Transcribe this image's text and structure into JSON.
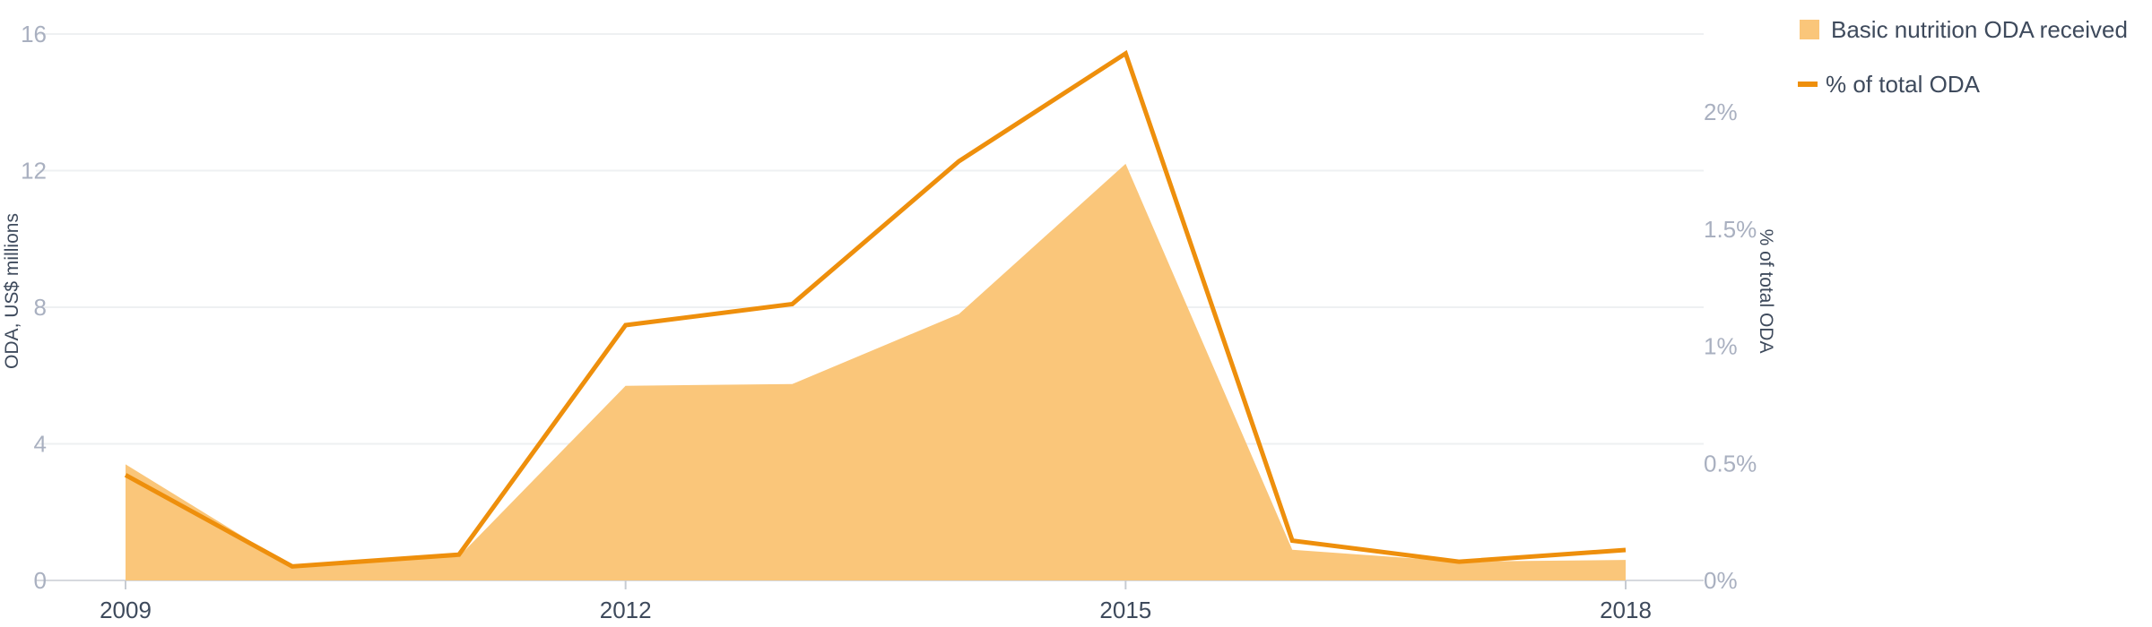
{
  "chart_data": {
    "type": "area",
    "x": [
      2009,
      2010,
      2011,
      2012,
      2013,
      2014,
      2015,
      2016,
      2017,
      2018
    ],
    "x_tick_labels": [
      "2009",
      "2012",
      "2015",
      "2018"
    ],
    "series": [
      {
        "name": "Basic nutrition ODA received",
        "type": "area",
        "axis": "left",
        "color": "#fac67a",
        "values": [
          3.4,
          0.4,
          0.7,
          5.7,
          5.75,
          7.8,
          12.2,
          0.9,
          0.55,
          0.6
        ]
      },
      {
        "name": "% of total ODA",
        "type": "line",
        "axis": "right",
        "color": "#ee8f0c",
        "values": [
          0.45,
          0.06,
          0.11,
          1.09,
          1.18,
          1.79,
          2.25,
          0.17,
          0.08,
          0.13
        ]
      }
    ],
    "y_left": {
      "label": "ODA, US$ millions",
      "range": [
        0,
        16
      ],
      "ticks": [
        0,
        4,
        8,
        12,
        16
      ],
      "tick_labels": [
        "0",
        "4",
        "8",
        "12",
        "16"
      ]
    },
    "y_right": {
      "label": "% of total ODA",
      "range": [
        0,
        2.333
      ],
      "ticks": [
        0,
        0.5,
        1,
        1.5,
        2
      ],
      "tick_labels": [
        "0%",
        "0.5%",
        "1%",
        "1.5%",
        "2%"
      ]
    },
    "grid": true,
    "legend_position": "top-right"
  }
}
